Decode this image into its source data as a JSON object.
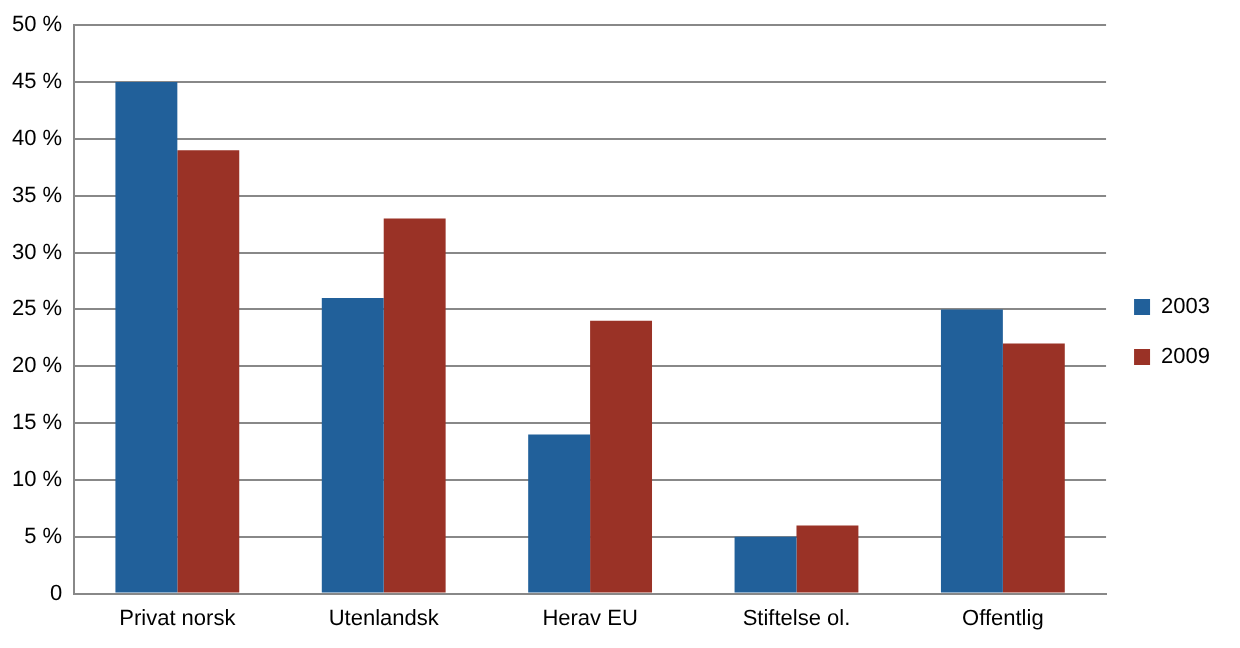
{
  "chart_data": {
    "type": "bar",
    "categories": [
      "Privat norsk",
      "Utenlandsk",
      "Herav EU",
      "Stiftelse ol.",
      "Offentlig"
    ],
    "series": [
      {
        "name": "2003",
        "color": "#21609a",
        "values": [
          45,
          26,
          14,
          5,
          25
        ]
      },
      {
        "name": "2009",
        "color": "#9a3226",
        "values": [
          39,
          33,
          24,
          6,
          22
        ]
      }
    ],
    "ylim": [
      0,
      50
    ],
    "yticks": [
      0,
      {
        "value": 5,
        "label": "5 %"
      },
      {
        "value": 10,
        "label": "10 %"
      },
      {
        "value": 15,
        "label": "15 %"
      },
      {
        "value": 20,
        "label": "20 %"
      },
      {
        "value": 25,
        "label": "25 %"
      },
      {
        "value": 30,
        "label": "30 %"
      },
      {
        "value": 35,
        "label": "35 %"
      },
      {
        "value": 40,
        "label": "40 %"
      },
      {
        "value": 45,
        "label": "45 %"
      },
      {
        "value": 50,
        "label": "50 %"
      }
    ],
    "grid": "y",
    "legend": "right"
  }
}
